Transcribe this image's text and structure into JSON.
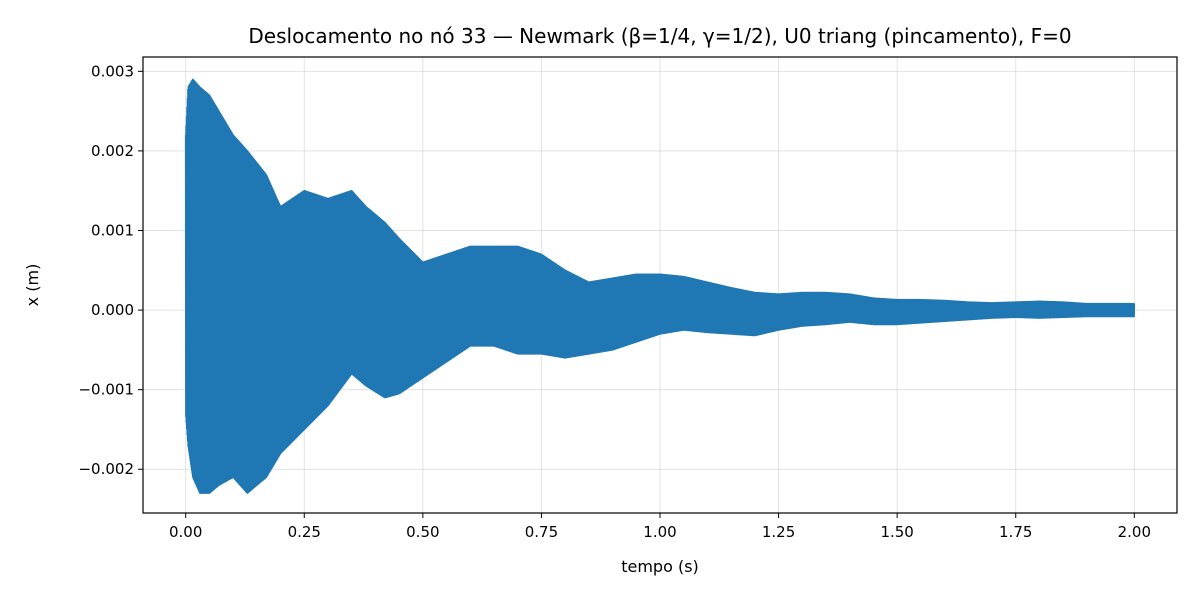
{
  "chart_data": {
    "type": "line",
    "title": "Deslocamento no nó 33 — Newmark (β=1/4, γ=1/2), U0 triang (pincamento), F=0",
    "xlabel": "tempo (s)",
    "ylabel": "x (m)",
    "xlim": [
      -0.09,
      2.09
    ],
    "ylim": [
      -0.00255,
      0.00318
    ],
    "x_ticks": [
      0.0,
      0.25,
      0.5,
      0.75,
      1.0,
      1.25,
      1.5,
      1.75,
      2.0
    ],
    "x_tick_labels": [
      "0.00",
      "0.25",
      "0.50",
      "0.75",
      "1.00",
      "1.25",
      "1.50",
      "1.75",
      "2.00"
    ],
    "y_ticks": [
      -0.002,
      -0.001,
      0.0,
      0.001,
      0.002,
      0.003
    ],
    "y_tick_labels": [
      "−0.002",
      "−0.001",
      "0.000",
      "0.001",
      "0.002",
      "0.003"
    ],
    "grid": true,
    "line_color": "#1f77b4",
    "series": [
      {
        "name": "",
        "envelope_t": [
          0.0,
          0.005,
          0.015,
          0.03,
          0.05,
          0.07,
          0.1,
          0.13,
          0.17,
          0.2,
          0.25,
          0.3,
          0.35,
          0.38,
          0.42,
          0.45,
          0.5,
          0.55,
          0.6,
          0.65,
          0.7,
          0.75,
          0.8,
          0.85,
          0.9,
          0.95,
          1.0,
          1.05,
          1.1,
          1.15,
          1.2,
          1.25,
          1.3,
          1.35,
          1.4,
          1.45,
          1.5,
          1.55,
          1.6,
          1.65,
          1.7,
          1.75,
          1.8,
          1.85,
          1.9,
          1.95,
          2.0
        ],
        "envelope_max": [
          0.0022,
          0.0028,
          0.0029,
          0.0028,
          0.0027,
          0.0025,
          0.0022,
          0.002,
          0.0017,
          0.0013,
          0.0015,
          0.0014,
          0.0015,
          0.0013,
          0.0011,
          0.0009,
          0.0006,
          0.0007,
          0.0008,
          0.0008,
          0.0008,
          0.0007,
          0.0005,
          0.00035,
          0.0004,
          0.00045,
          0.00045,
          0.00042,
          0.00035,
          0.00028,
          0.00022,
          0.0002,
          0.00022,
          0.00022,
          0.0002,
          0.00015,
          0.00013,
          0.00013,
          0.00012,
          0.0001,
          9e-05,
          0.0001,
          0.00011,
          0.0001,
          8e-05,
          8e-05,
          8e-05
        ],
        "envelope_min": [
          -0.0013,
          -0.0017,
          -0.0021,
          -0.0023,
          -0.0023,
          -0.0022,
          -0.0021,
          -0.0023,
          -0.0021,
          -0.0018,
          -0.0015,
          -0.0012,
          -0.0008,
          -0.00095,
          -0.0011,
          -0.00105,
          -0.00085,
          -0.00065,
          -0.00045,
          -0.00045,
          -0.00055,
          -0.00055,
          -0.0006,
          -0.00055,
          -0.0005,
          -0.0004,
          -0.0003,
          -0.00025,
          -0.00028,
          -0.0003,
          -0.00032,
          -0.00025,
          -0.0002,
          -0.00018,
          -0.00015,
          -0.00018,
          -0.00018,
          -0.00016,
          -0.00014,
          -0.00012,
          -0.0001,
          -9e-05,
          -0.0001,
          -9e-05,
          -8e-05,
          -8e-05,
          -8e-05
        ]
      }
    ]
  }
}
